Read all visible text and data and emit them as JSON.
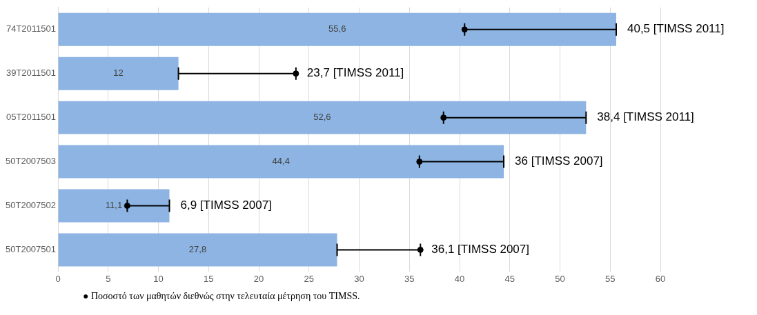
{
  "chart_data": {
    "type": "bar",
    "orientation": "horizontal",
    "categories": [
      "74T2011501",
      "39T2011501",
      "05T2011501",
      "50T2007503",
      "50T2007502",
      "50T2007501"
    ],
    "series": [
      {
        "color": "#8db4e2",
        "values": [
          55.6,
          12,
          52.6,
          44.4,
          11.1,
          27.8
        ],
        "value_labels": [
          "55,6",
          "12",
          "52,6",
          "44,4",
          "11,1",
          "27,8"
        ]
      },
      {
        "type": "scatter",
        "color": "#000000",
        "values": [
          40.5,
          23.7,
          38.4,
          36,
          6.9,
          36.1
        ],
        "errors": [
          [
            40.5,
            55.6
          ],
          [
            12,
            23.7
          ],
          [
            38.4,
            52.6
          ],
          [
            36,
            44.4
          ],
          [
            6.9,
            11.1
          ],
          [
            27.8,
            36.1
          ]
        ]
      }
    ],
    "xlim": [
      0,
      60
    ],
    "xticks": [
      0,
      5,
      10,
      15,
      20,
      25,
      30,
      35,
      40,
      45,
      50,
      55,
      60
    ],
    "grid": "x",
    "marker": "circle",
    "annotations": [
      {
        "text": "40,5 [TIMSS 2011]",
        "x": 55.6,
        "y": "74T2011501"
      },
      {
        "text": "23,7 [TIMSS 2011]",
        "x": 23.7,
        "y": "39T2011501"
      },
      {
        "text": "38,4 [TIMSS 2011]",
        "x": 52.6,
        "y": "05T2011501"
      },
      {
        "text": "36 [TIMSS 2007]",
        "x": 44.4,
        "y": "50T2007503"
      },
      {
        "text": "6,9 [TIMSS 2007]",
        "x": 11.1,
        "y": "50T2007502"
      },
      {
        "text": "36,1 [TIMSS 2007]",
        "x": 36.1,
        "y": "50T2007501"
      },
      "● Ποσοστό των μαθητών διεθνώς στην τελευταία μέτρηση του TIMSS."
    ]
  }
}
